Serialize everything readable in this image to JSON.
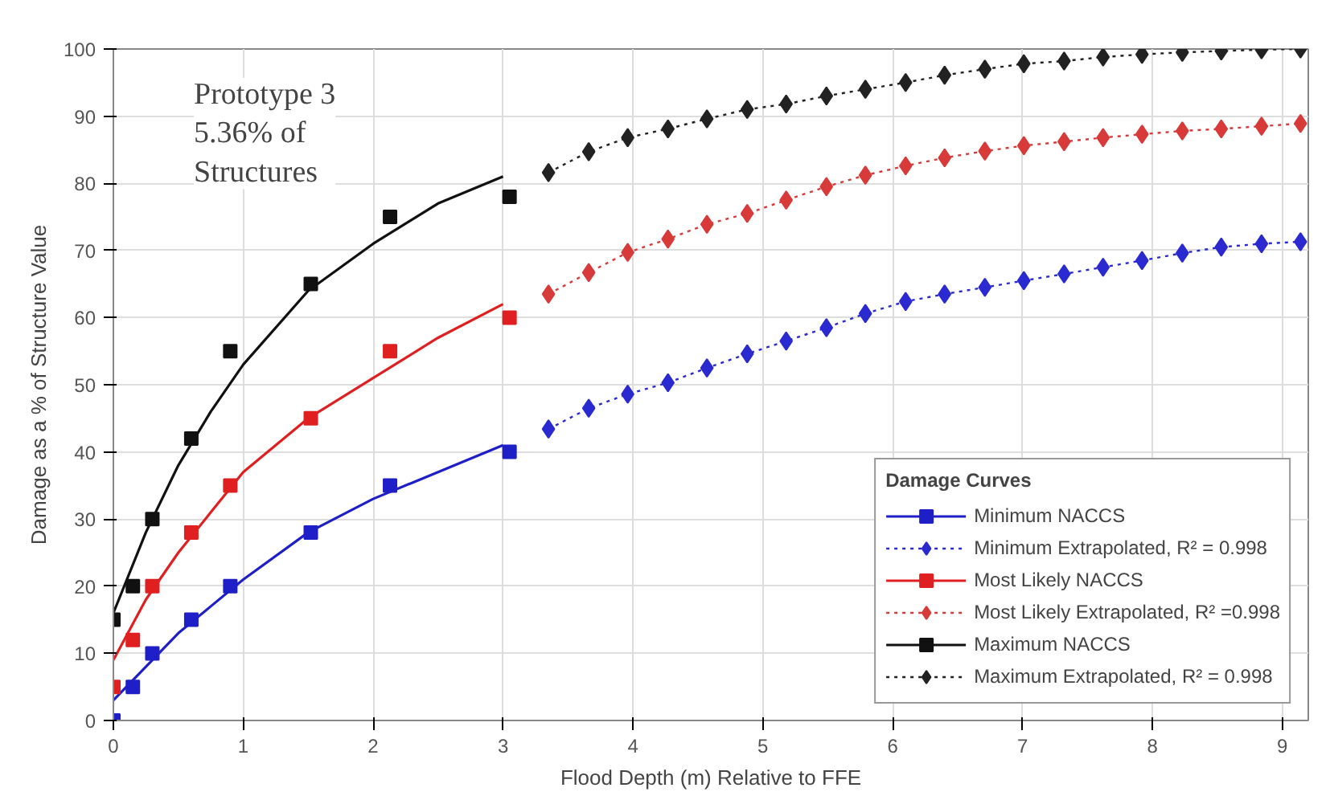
{
  "chart_data": {
    "type": "line",
    "xlabel": "Flood Depth (m) Relative to FFE",
    "ylabel": "Damage as a % of Structure Value",
    "legend_title": "Damage Curves",
    "annotations": [
      "Prototype 3\n5.36% of\nStructures"
    ],
    "xlim": [
      0,
      9.2
    ],
    "xticks": [
      0,
      1,
      2,
      3,
      4,
      5,
      6,
      7,
      8,
      9
    ],
    "ylim": [
      0,
      100
    ],
    "yticks": [
      0,
      10,
      20,
      30,
      40,
      50,
      60,
      70,
      80,
      90,
      100
    ],
    "grid": true,
    "legend": "bottom right",
    "series": [
      {
        "color": "#1f1fc8",
        "marker": "none",
        "line_style": "solid",
        "x": [
          0,
          0.25,
          0.5,
          0.75,
          1,
          1.5,
          2,
          2.5,
          3
        ],
        "values": [
          3,
          8,
          13,
          17,
          21,
          28,
          33,
          37,
          41
        ]
      },
      {
        "type": "scatter",
        "name": "Minimum NACCS",
        "color": "#1f1fc8",
        "marker": "square",
        "x": [
          0,
          0.15,
          0.3,
          0.6,
          0.9,
          1.52,
          2.13,
          3.05
        ],
        "values": [
          0,
          5,
          10,
          15,
          20,
          28,
          35,
          40
        ]
      },
      {
        "name": "Minimum Extrapolated, R² = 0.998",
        "color": "#2a2ad0",
        "marker": "diamond",
        "line_style": "dotted",
        "x": [
          3.35,
          3.66,
          3.96,
          4.27,
          4.57,
          4.88,
          5.18,
          5.49,
          5.79,
          6.1,
          6.4,
          6.71,
          7.01,
          7.32,
          7.62,
          7.92,
          8.23,
          8.53,
          8.84,
          9.14
        ],
        "values": [
          43.4,
          46.5,
          48.6,
          50.3,
          52.5,
          54.6,
          56.5,
          58.5,
          60.6,
          62.4,
          63.5,
          64.5,
          65.5,
          66.5,
          67.5,
          68.5,
          69.6,
          70.5,
          71.0,
          71.3
        ]
      },
      {
        "color": "#e02020",
        "marker": "none",
        "line_style": "solid",
        "x": [
          0,
          0.25,
          0.5,
          0.75,
          1,
          1.5,
          2,
          2.5,
          3
        ],
        "values": [
          9,
          18,
          25,
          31,
          37,
          45,
          51,
          57,
          62
        ]
      },
      {
        "type": "scatter",
        "name": "Most Likely NACCS",
        "color": "#e02020",
        "marker": "square",
        "x": [
          0,
          0.15,
          0.3,
          0.6,
          0.9,
          1.52,
          2.13,
          3.05
        ],
        "values": [
          5,
          12,
          20,
          28,
          35,
          45,
          55,
          60
        ]
      },
      {
        "name": "Most Likely Extrapolated, R² =0.998",
        "color": "#d83a3a",
        "marker": "diamond",
        "line_style": "dotted",
        "x": [
          3.35,
          3.66,
          3.96,
          4.27,
          4.57,
          4.88,
          5.18,
          5.49,
          5.79,
          6.1,
          6.4,
          6.71,
          7.01,
          7.32,
          7.62,
          7.92,
          8.23,
          8.53,
          8.84,
          9.14
        ],
        "values": [
          63.5,
          66.7,
          69.7,
          71.7,
          73.9,
          75.5,
          77.5,
          79.5,
          81.2,
          82.6,
          83.8,
          84.8,
          85.6,
          86.2,
          86.8,
          87.3,
          87.8,
          88.1,
          88.5,
          88.9
        ]
      },
      {
        "color": "#111111",
        "marker": "none",
        "line_style": "solid",
        "x": [
          0,
          0.25,
          0.5,
          0.75,
          1,
          1.5,
          2,
          2.5,
          3
        ],
        "values": [
          16,
          28,
          38,
          46,
          53,
          64,
          71,
          77,
          81
        ]
      },
      {
        "type": "scatter",
        "name": "Maximum NACCS",
        "color": "#111111",
        "marker": "square",
        "x": [
          0,
          0.15,
          0.3,
          0.6,
          0.9,
          1.52,
          2.13,
          3.05
        ],
        "values": [
          15,
          20,
          30,
          42,
          55,
          65,
          75,
          78
        ]
      },
      {
        "name": "Maximum Extrapolated, R² = 0.998",
        "color": "#222222",
        "marker": "diamond",
        "line_style": "dotted",
        "x": [
          3.35,
          3.66,
          3.96,
          4.27,
          4.57,
          4.88,
          5.18,
          5.49,
          5.79,
          6.1,
          6.4,
          6.71,
          7.01,
          7.32,
          7.62,
          7.92,
          8.23,
          8.53,
          8.84,
          9.14
        ],
        "values": [
          81.6,
          84.7,
          86.8,
          88.1,
          89.6,
          91.0,
          91.8,
          93.0,
          94.0,
          95.0,
          96.1,
          97.0,
          97.8,
          98.2,
          98.8,
          99.2,
          99.5,
          99.7,
          99.9,
          100.0
        ]
      }
    ]
  }
}
